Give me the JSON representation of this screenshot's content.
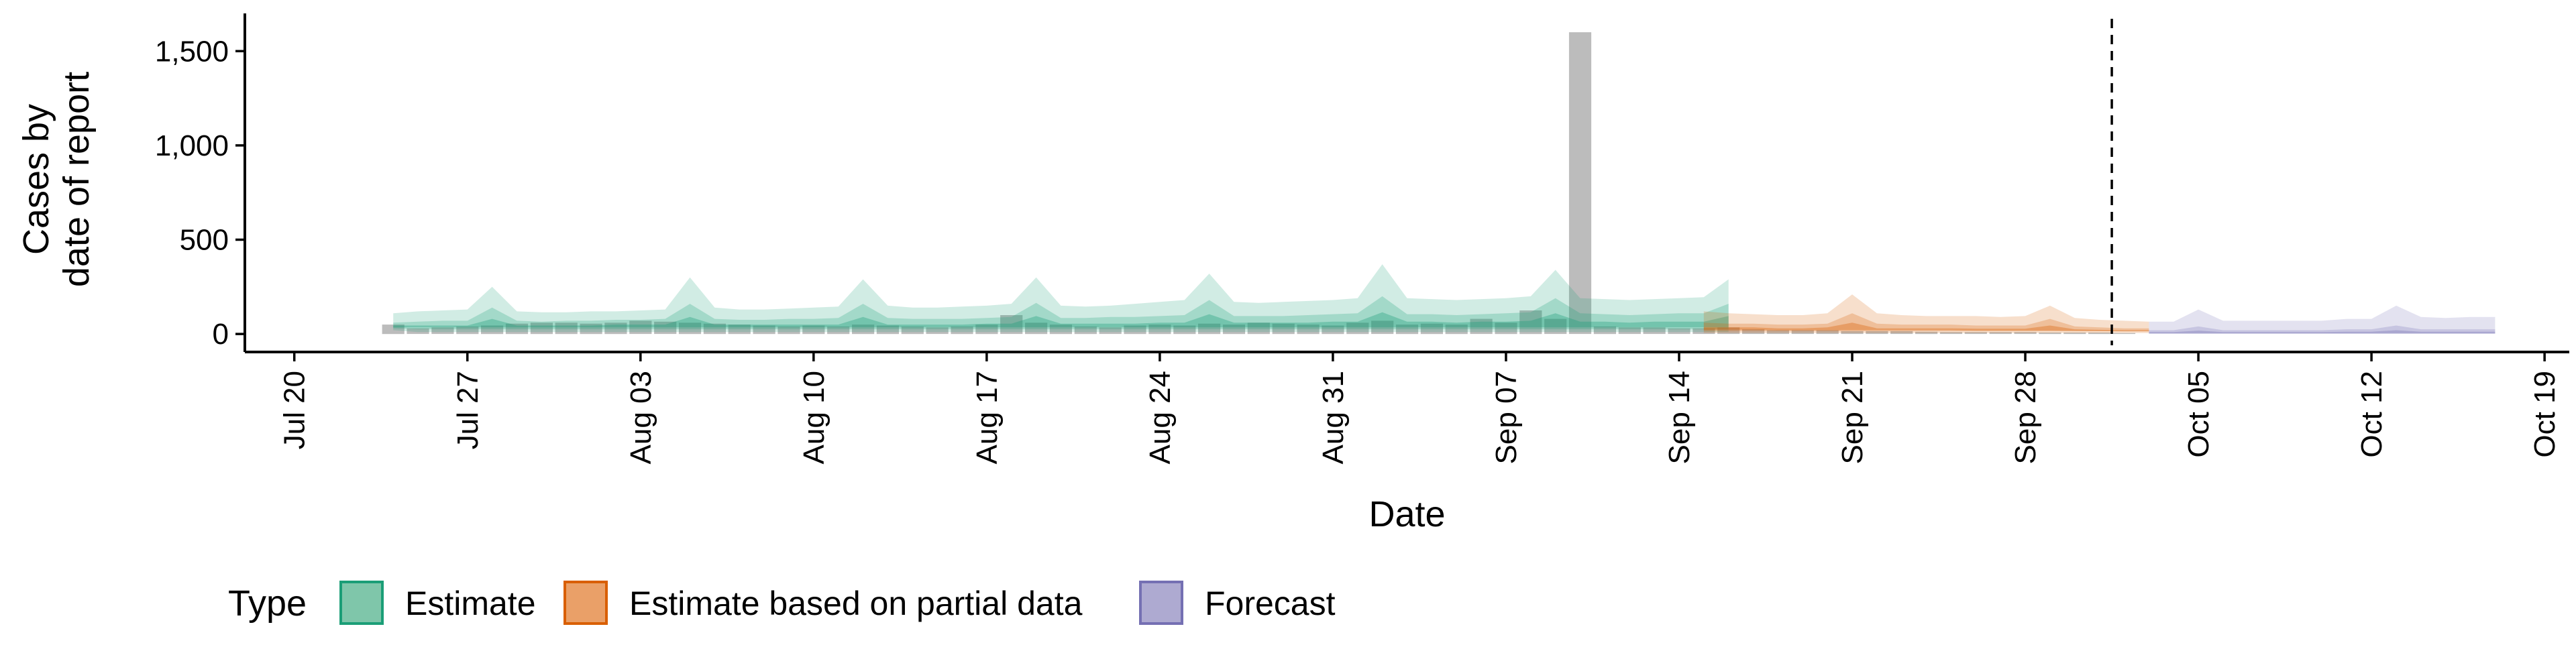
{
  "chart_data": {
    "type": "area",
    "xlabel": "Date",
    "ylabel": "Cases by\ndate of report",
    "ylim": [
      -60,
      1700
    ],
    "xlim": [
      "2020-07-18",
      "2020-10-20"
    ],
    "x_ticks": [
      "2020-07-20",
      "2020-07-27",
      "2020-08-03",
      "2020-08-10",
      "2020-08-17",
      "2020-08-24",
      "2020-08-31",
      "2020-09-07",
      "2020-09-14",
      "2020-09-21",
      "2020-09-28",
      "2020-10-05",
      "2020-10-12",
      "2020-10-19"
    ],
    "x_tick_labels": [
      "Jul 20",
      "Jul 27",
      "Aug 03",
      "Aug 10",
      "Aug 17",
      "Aug 24",
      "Aug 31",
      "Sep 07",
      "Sep 14",
      "Sep 21",
      "Sep 28",
      "Oct 05",
      "Oct 12",
      "Oct 19"
    ],
    "y_ticks": [
      0,
      500,
      1000,
      1500
    ],
    "y_tick_labels": [
      "0",
      "500",
      "1,000",
      "1,500"
    ],
    "forecast_line_date": "2020-10-01",
    "grid": false,
    "legend": {
      "title": "Type",
      "position": "bottom",
      "entries": [
        {
          "label": "Estimate",
          "fill": "#7fc6aa",
          "stroke": "#1b9e77"
        },
        {
          "label": "Estimate based on partial data",
          "fill": "#eaa068",
          "stroke": "#d95f02"
        },
        {
          "label": "Forecast",
          "fill": "#aeaad1",
          "stroke": "#7570b3"
        }
      ]
    },
    "colors": {
      "estimate": "#1b9e77",
      "partial": "#d95f02",
      "forecast": "#7570b3",
      "reported": "#a6a6a6"
    },
    "reported_cases": {
      "start": "2020-07-24",
      "values": [
        50,
        30,
        35,
        40,
        45,
        55,
        60,
        60,
        55,
        60,
        70,
        65,
        60,
        55,
        50,
        45,
        40,
        45,
        40,
        50,
        45,
        40,
        35,
        40,
        50,
        100,
        60,
        50,
        40,
        35,
        45,
        50,
        45,
        55,
        50,
        60,
        55,
        50,
        45,
        60,
        70,
        50,
        55,
        50,
        80,
        60,
        125,
        80,
        1600,
        40,
        35,
        35,
        30,
        30,
        35,
        25,
        20,
        20,
        20,
        15,
        15,
        15,
        12,
        10,
        10,
        10,
        10,
        8,
        8,
        8,
        5
      ]
    },
    "series": [
      {
        "name": "Estimate",
        "start": "2020-07-24",
        "upper_90": [
          110,
          120,
          125,
          130,
          250,
          120,
          115,
          115,
          120,
          120,
          125,
          130,
          300,
          140,
          130,
          130,
          135,
          140,
          145,
          290,
          150,
          140,
          140,
          145,
          150,
          160,
          300,
          150,
          145,
          150,
          160,
          170,
          180,
          320,
          170,
          165,
          170,
          175,
          180,
          190,
          370,
          190,
          185,
          180,
          185,
          190,
          200,
          340,
          190,
          185,
          180,
          185,
          190,
          195,
          290
        ],
        "lower_90": [
          20,
          10,
          10,
          10,
          10,
          10,
          10,
          10,
          10,
          10,
          10,
          10,
          10,
          10,
          10,
          10,
          10,
          10,
          10,
          10,
          10,
          10,
          10,
          10,
          10,
          10,
          10,
          10,
          10,
          10,
          10,
          10,
          10,
          10,
          10,
          10,
          10,
          10,
          10,
          10,
          10,
          10,
          10,
          10,
          10,
          10,
          10,
          10,
          10,
          10,
          10,
          10,
          10,
          10,
          10
        ],
        "upper_50": [
          60,
          65,
          70,
          70,
          140,
          70,
          65,
          70,
          70,
          75,
          75,
          80,
          160,
          80,
          75,
          75,
          80,
          80,
          85,
          160,
          85,
          80,
          80,
          80,
          85,
          90,
          165,
          85,
          85,
          90,
          90,
          95,
          100,
          180,
          95,
          95,
          95,
          100,
          105,
          110,
          200,
          105,
          105,
          100,
          105,
          110,
          115,
          190,
          110,
          105,
          100,
          105,
          110,
          110,
          160
        ],
        "lower_50": [
          30,
          25,
          25,
          25,
          25,
          25,
          25,
          25,
          25,
          25,
          25,
          25,
          25,
          25,
          25,
          25,
          25,
          25,
          25,
          25,
          25,
          25,
          25,
          25,
          25,
          25,
          25,
          25,
          25,
          25,
          25,
          25,
          25,
          25,
          25,
          25,
          25,
          25,
          25,
          25,
          25,
          25,
          25,
          25,
          25,
          25,
          25,
          25,
          25,
          25,
          25,
          25,
          25,
          25,
          25
        ],
        "upper_20": [
          45,
          45,
          45,
          45,
          80,
          45,
          45,
          45,
          45,
          50,
          50,
          50,
          90,
          50,
          50,
          50,
          50,
          50,
          50,
          90,
          50,
          50,
          50,
          50,
          55,
          55,
          95,
          55,
          55,
          55,
          55,
          60,
          60,
          105,
          60,
          60,
          60,
          60,
          65,
          65,
          115,
          65,
          65,
          60,
          65,
          65,
          70,
          110,
          65,
          65,
          60,
          65,
          65,
          65,
          95
        ],
        "lower_20": [
          35,
          35,
          35,
          35,
          35,
          35,
          35,
          35,
          35,
          35,
          35,
          35,
          35,
          35,
          35,
          35,
          35,
          35,
          35,
          35,
          35,
          35,
          35,
          35,
          35,
          35,
          35,
          35,
          35,
          35,
          35,
          35,
          35,
          35,
          35,
          35,
          35,
          35,
          35,
          35,
          35,
          35,
          35,
          35,
          35,
          35,
          35,
          35,
          35,
          35,
          35,
          35,
          35,
          35,
          35
        ]
      },
      {
        "name": "Estimate based on partial data",
        "start": "2020-09-15",
        "upper_90": [
          120,
          110,
          105,
          100,
          100,
          110,
          210,
          110,
          100,
          95,
          95,
          95,
          90,
          95,
          150,
          85,
          75,
          70,
          65
        ],
        "lower_90": [
          5,
          5,
          5,
          5,
          5,
          5,
          5,
          5,
          5,
          5,
          5,
          5,
          5,
          5,
          5,
          5,
          5,
          5,
          5
        ],
        "upper_50": [
          60,
          55,
          55,
          50,
          50,
          55,
          110,
          55,
          50,
          50,
          50,
          45,
          45,
          45,
          80,
          40,
          35,
          30,
          30
        ],
        "lower_50": [
          15,
          15,
          15,
          15,
          15,
          15,
          15,
          15,
          15,
          15,
          15,
          15,
          15,
          15,
          15,
          15,
          15,
          15,
          15
        ],
        "upper_20": [
          35,
          35,
          35,
          30,
          30,
          35,
          60,
          30,
          30,
          30,
          30,
          28,
          28,
          28,
          45,
          25,
          22,
          20,
          20
        ],
        "lower_20": [
          22,
          22,
          22,
          20,
          20,
          20,
          20,
          20,
          20,
          20,
          20,
          18,
          18,
          18,
          18,
          16,
          15,
          14,
          14
        ]
      },
      {
        "name": "Forecast",
        "start": "2020-10-03",
        "upper_90": [
          65,
          65,
          130,
          70,
          70,
          70,
          70,
          70,
          80,
          80,
          150,
          90,
          85,
          90,
          90
        ],
        "lower_90": [
          0,
          0,
          0,
          0,
          0,
          0,
          0,
          0,
          0,
          0,
          0,
          0,
          0,
          0,
          0
        ],
        "upper_50": [
          20,
          20,
          40,
          20,
          20,
          20,
          20,
          20,
          25,
          25,
          45,
          25,
          25,
          25,
          25
        ],
        "lower_50": [
          2,
          2,
          2,
          2,
          2,
          2,
          2,
          2,
          2,
          2,
          2,
          2,
          2,
          2,
          2
        ],
        "upper_20": [
          10,
          10,
          18,
          10,
          10,
          10,
          10,
          10,
          12,
          12,
          20,
          12,
          12,
          12,
          12
        ],
        "lower_20": [
          4,
          4,
          4,
          4,
          4,
          4,
          4,
          4,
          4,
          4,
          4,
          4,
          4,
          4,
          4
        ]
      }
    ]
  }
}
